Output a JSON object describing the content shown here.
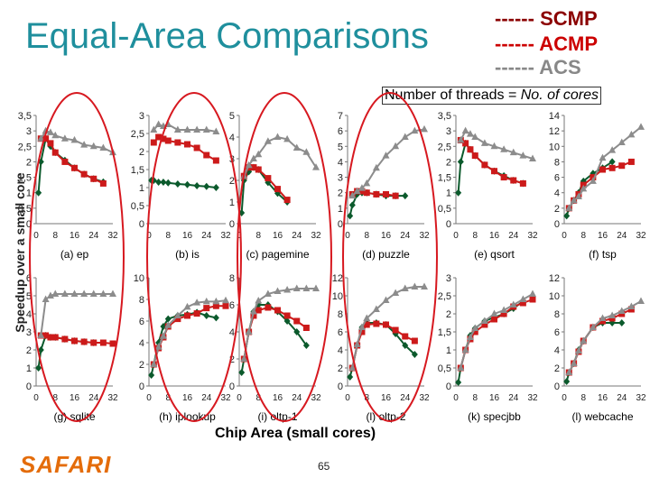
{
  "slide": {
    "title": "Equal-Area Comparisons",
    "note_prefix": "Number of threads = ",
    "note_emph": "No. of cores",
    "ylabel": "Speedup over a small core",
    "xlabel": "Chip Area (small cores)",
    "logo": "SAFARI",
    "page": "65"
  },
  "legend": [
    {
      "label": "------ SCMP",
      "color": "#8b0000"
    },
    {
      "label": "------ ACMP",
      "color": "#cc0000"
    },
    {
      "label": "------ ACS",
      "color": "#888888"
    }
  ],
  "colors": {
    "scmp": "#0b5a2c",
    "acmp": "#cc1a1a",
    "acs": "#8c8c8c",
    "circle": "#d71920",
    "title": "#1f8f9d"
  },
  "chart_data": [
    {
      "type": "line",
      "title": "(a) ep",
      "x": [
        1,
        2,
        4,
        6,
        8,
        12,
        16,
        20,
        24,
        28,
        32
      ],
      "xticks": [
        "0",
        "8",
        "16",
        "24",
        "32"
      ],
      "ylim": [
        0,
        3.5
      ],
      "yticks": [
        "0",
        "0,5",
        "1",
        "1,5",
        "2",
        "2,5",
        "3",
        "3,5"
      ],
      "series": [
        {
          "name": "SCMP",
          "values": [
            1,
            2,
            2.75,
            2.5,
            2.3,
            2.05,
            1.8,
            1.6,
            1.45,
            1.35,
            null
          ]
        },
        {
          "name": "ACMP",
          "values": [
            null,
            2.75,
            2.75,
            2.6,
            2.3,
            2.0,
            1.8,
            1.6,
            1.45,
            1.3,
            null
          ]
        },
        {
          "name": "ACS",
          "values": [
            null,
            2.75,
            3.0,
            2.95,
            2.85,
            2.75,
            2.7,
            2.55,
            2.5,
            2.45,
            2.3
          ]
        }
      ]
    },
    {
      "type": "line",
      "title": "(b) is",
      "x": [
        1,
        2,
        4,
        6,
        8,
        12,
        16,
        20,
        24,
        28,
        32
      ],
      "xticks": [
        "0",
        "8",
        "16",
        "24",
        "32"
      ],
      "ylim": [
        0,
        3
      ],
      "yticks": [
        "0",
        "0,5",
        "1",
        "1,5",
        "2",
        "2,5",
        "3"
      ],
      "series": [
        {
          "name": "SCMP",
          "values": [
            1.2,
            1.2,
            1.15,
            1.15,
            1.13,
            1.1,
            1.08,
            1.05,
            1.03,
            1.0,
            null
          ]
        },
        {
          "name": "ACMP",
          "values": [
            null,
            2.25,
            2.4,
            2.35,
            2.3,
            2.25,
            2.2,
            2.1,
            1.9,
            1.75,
            null
          ]
        },
        {
          "name": "ACS",
          "values": [
            null,
            2.6,
            2.75,
            2.7,
            2.75,
            2.6,
            2.6,
            2.6,
            2.6,
            2.55,
            null
          ]
        }
      ]
    },
    {
      "type": "line",
      "title": "(c) pagemine",
      "x": [
        1,
        2,
        4,
        6,
        8,
        12,
        16,
        20,
        24,
        28,
        32
      ],
      "xticks": [
        "0",
        "8",
        "16",
        "24",
        "32"
      ],
      "ylim": [
        0,
        5
      ],
      "yticks": [
        "0",
        "1",
        "2",
        "3",
        "4",
        "5"
      ],
      "series": [
        {
          "name": "SCMP",
          "values": [
            0.5,
            2,
            2.4,
            2.6,
            2.5,
            1.9,
            1.4,
            1.0,
            null,
            null,
            null
          ]
        },
        {
          "name": "ACMP",
          "values": [
            null,
            2.2,
            2.6,
            2.6,
            2.5,
            2.1,
            1.6,
            1.1,
            null,
            null,
            null
          ]
        },
        {
          "name": "ACS",
          "values": [
            null,
            2.2,
            2.7,
            3.0,
            3.2,
            3.8,
            4.0,
            3.9,
            3.5,
            3.3,
            2.6
          ]
        }
      ]
    },
    {
      "type": "line",
      "title": "(d) puzzle",
      "x": [
        1,
        2,
        4,
        6,
        8,
        12,
        16,
        20,
        24,
        28,
        32
      ],
      "xticks": [
        "0",
        "8",
        "16",
        "24",
        "32"
      ],
      "ylim": [
        0,
        7
      ],
      "yticks": [
        "0",
        "1",
        "2",
        "3",
        "4",
        "5",
        "6",
        "7"
      ],
      "series": [
        {
          "name": "SCMP",
          "values": [
            0.5,
            1.2,
            1.9,
            2.0,
            2.0,
            1.9,
            1.8,
            1.8,
            1.8,
            null,
            null
          ]
        },
        {
          "name": "ACMP",
          "values": [
            null,
            1.9,
            2.1,
            2.1,
            2.0,
            1.9,
            1.9,
            1.8,
            null,
            null,
            null
          ]
        },
        {
          "name": "ACS",
          "values": [
            null,
            1.8,
            2.1,
            2.3,
            2.6,
            3.6,
            4.4,
            5.0,
            5.6,
            6.0,
            6.1
          ]
        }
      ]
    },
    {
      "type": "line",
      "title": "(e) qsort",
      "x": [
        1,
        2,
        4,
        6,
        8,
        12,
        16,
        20,
        24,
        28,
        32
      ],
      "xticks": [
        "0",
        "8",
        "16",
        "24",
        "32"
      ],
      "ylim": [
        0,
        3.5
      ],
      "yticks": [
        "0",
        "0,5",
        "1",
        "1,5",
        "2",
        "2,5",
        "3",
        "3,5"
      ],
      "series": [
        {
          "name": "SCMP",
          "values": [
            1,
            2,
            2.6,
            2.4,
            2.2,
            1.9,
            1.7,
            1.55,
            1.4,
            1.3,
            null
          ]
        },
        {
          "name": "ACMP",
          "values": [
            null,
            2.7,
            2.6,
            2.4,
            2.2,
            1.9,
            1.7,
            1.5,
            1.4,
            1.3,
            null
          ]
        },
        {
          "name": "ACS",
          "values": [
            null,
            2.7,
            3.0,
            2.9,
            2.8,
            2.6,
            2.5,
            2.4,
            2.3,
            2.2,
            2.1
          ]
        }
      ]
    },
    {
      "type": "line",
      "title": "(f) tsp",
      "x": [
        1,
        2,
        4,
        6,
        8,
        12,
        16,
        20,
        24,
        28,
        32
      ],
      "xticks": [
        "0",
        "8",
        "16",
        "24",
        "32"
      ],
      "ylim": [
        0,
        14
      ],
      "yticks": [
        "0",
        "2",
        "4",
        "6",
        "8",
        "10",
        "12",
        "14"
      ],
      "series": [
        {
          "name": "SCMP",
          "values": [
            1,
            2,
            3,
            4,
            5.5,
            6.5,
            7.2,
            8.0,
            null,
            null,
            null
          ]
        },
        {
          "name": "ACMP",
          "values": [
            null,
            2,
            3,
            3.8,
            5.0,
            6.0,
            7.0,
            7.2,
            7.5,
            8.0,
            null
          ]
        },
        {
          "name": "ACS",
          "values": [
            null,
            2,
            3,
            3.5,
            4.5,
            5.5,
            8.5,
            9.5,
            10.5,
            11.5,
            12.5
          ]
        }
      ]
    },
    {
      "type": "line",
      "title": "(g) sqlite",
      "x": [
        1,
        2,
        4,
        6,
        8,
        12,
        16,
        20,
        24,
        28,
        32
      ],
      "xticks": [
        "0",
        "8",
        "16",
        "24",
        "32"
      ],
      "ylim": [
        0,
        6
      ],
      "yticks": [
        "0",
        "1",
        "2",
        "3",
        "4",
        "5",
        "6"
      ],
      "series": [
        {
          "name": "SCMP",
          "values": [
            1,
            2,
            2.8,
            2.7,
            2.7,
            2.6,
            2.5,
            2.45,
            2.4,
            null,
            null
          ]
        },
        {
          "name": "ACMP",
          "values": [
            null,
            2.8,
            2.8,
            2.7,
            2.7,
            2.6,
            2.5,
            2.45,
            2.4,
            2.4,
            2.35
          ]
        },
        {
          "name": "ACS",
          "values": [
            null,
            2.8,
            4.8,
            5.0,
            5.1,
            5.1,
            5.1,
            5.1,
            5.1,
            5.1,
            5.1
          ]
        }
      ]
    },
    {
      "type": "line",
      "title": "(h) iplookup",
      "x": [
        1,
        2,
        4,
        6,
        8,
        12,
        16,
        20,
        24,
        28,
        32
      ],
      "xticks": [
        "0",
        "8",
        "16",
        "24",
        "32"
      ],
      "ylim": [
        0,
        10
      ],
      "yticks": [
        "0",
        "2",
        "4",
        "6",
        "8",
        "10"
      ],
      "series": [
        {
          "name": "SCMP",
          "values": [
            1,
            2,
            4,
            5.5,
            6.2,
            6.5,
            6.6,
            6.8,
            6.5,
            6.3,
            null
          ]
        },
        {
          "name": "ACMP",
          "values": [
            null,
            2,
            3.5,
            4.5,
            5.5,
            6.2,
            6.5,
            6.7,
            7.2,
            7.4,
            7.4
          ]
        },
        {
          "name": "ACS",
          "values": [
            null,
            2,
            3.6,
            4.6,
            5.6,
            6.5,
            7.3,
            7.7,
            7.8,
            7.8,
            7.9
          ]
        }
      ]
    },
    {
      "type": "line",
      "title": "(i) oltp-1",
      "x": [
        1,
        2,
        4,
        6,
        8,
        12,
        16,
        20,
        24,
        28,
        32
      ],
      "xticks": [
        "0",
        "8",
        "16",
        "24",
        "32"
      ],
      "ylim": [
        0,
        8
      ],
      "yticks": [
        "0",
        "2",
        "4",
        "6",
        "8"
      ],
      "series": [
        {
          "name": "SCMP",
          "values": [
            1,
            2,
            4,
            5.5,
            6.0,
            6.0,
            5.5,
            4.8,
            4.0,
            3.0,
            null
          ]
        },
        {
          "name": "ACMP",
          "values": [
            null,
            2,
            4,
            5.2,
            5.6,
            5.8,
            5.6,
            5.2,
            4.8,
            4.3,
            null
          ]
        },
        {
          "name": "ACS",
          "values": [
            null,
            2,
            4,
            5.5,
            6.3,
            6.8,
            7.0,
            7.1,
            7.2,
            7.2,
            7.2
          ]
        }
      ]
    },
    {
      "type": "line",
      "title": "(l) oltp-2",
      "x": [
        1,
        2,
        4,
        6,
        8,
        12,
        16,
        20,
        24,
        28,
        32
      ],
      "xticks": [
        "0",
        "8",
        "16",
        "24",
        "32"
      ],
      "ylim": [
        0,
        12
      ],
      "yticks": [
        "0",
        "2",
        "4",
        "6",
        "8",
        "10",
        "12"
      ],
      "series": [
        {
          "name": "SCMP",
          "values": [
            1,
            2,
            4.5,
            6.5,
            7.0,
            7.0,
            6.8,
            5.8,
            4.5,
            3.5,
            null
          ]
        },
        {
          "name": "ACMP",
          "values": [
            null,
            2,
            4.5,
            6.0,
            6.8,
            6.9,
            6.8,
            6.2,
            5.5,
            5.0,
            null
          ]
        },
        {
          "name": "ACS",
          "values": [
            null,
            2,
            4.6,
            6.5,
            7.5,
            8.5,
            9.5,
            10.3,
            10.8,
            11.0,
            11.0
          ]
        }
      ]
    },
    {
      "type": "line",
      "title": "(k) specjbb",
      "x": [
        1,
        2,
        4,
        6,
        8,
        12,
        16,
        20,
        24,
        28,
        32
      ],
      "xticks": [
        "0",
        "8",
        "16",
        "24",
        "32"
      ],
      "ylim": [
        0,
        3
      ],
      "yticks": [
        "0",
        "0,5",
        "1",
        "1,5",
        "2",
        "2,5",
        "3"
      ],
      "series": [
        {
          "name": "SCMP",
          "values": [
            0.1,
            0.5,
            1.0,
            1.4,
            1.6,
            1.8,
            1.9,
            2.0,
            2.15,
            2.35,
            null
          ]
        },
        {
          "name": "ACMP",
          "values": [
            null,
            0.5,
            1.0,
            1.3,
            1.5,
            1.7,
            1.85,
            2.0,
            2.2,
            2.3,
            2.4
          ]
        },
        {
          "name": "ACS",
          "values": [
            null,
            0.5,
            1.0,
            1.35,
            1.6,
            1.8,
            2.0,
            2.1,
            2.25,
            2.4,
            2.55
          ]
        }
      ]
    },
    {
      "type": "line",
      "title": "(l) webcache",
      "x": [
        1,
        2,
        4,
        6,
        8,
        12,
        16,
        20,
        24,
        28,
        32
      ],
      "xticks": [
        "0",
        "8",
        "16",
        "24",
        "32"
      ],
      "ylim": [
        0,
        12
      ],
      "yticks": [
        "0",
        "2",
        "4",
        "6",
        "8",
        "10",
        "12"
      ],
      "series": [
        {
          "name": "SCMP",
          "values": [
            0.5,
            1.5,
            2.5,
            4,
            5,
            6.5,
            7.0,
            7.0,
            7.0,
            null,
            null
          ]
        },
        {
          "name": "ACMP",
          "values": [
            null,
            1.5,
            2.5,
            3.8,
            5,
            6.5,
            7.2,
            7.5,
            8.0,
            8.5,
            null
          ]
        },
        {
          "name": "ACS",
          "values": [
            null,
            1.5,
            2.5,
            3.9,
            5,
            6.5,
            7.5,
            7.8,
            8.3,
            8.8,
            9.4
          ]
        }
      ]
    }
  ]
}
